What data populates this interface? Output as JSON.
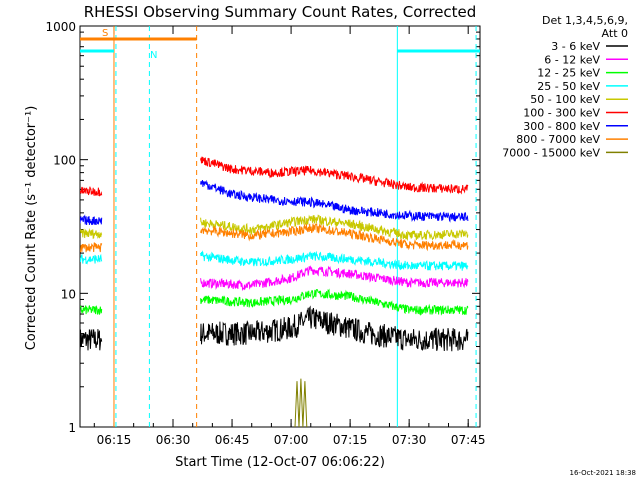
{
  "chart_data": {
    "type": "line",
    "title": "RHESSI Observing Summary Count Rates, Corrected",
    "xlabel": "Start Time (12-Oct-07 06:06:22)",
    "ylabel": "Corrected Count Rate (s⁻¹ detector⁻¹)",
    "y_scale": "log",
    "ylim": [
      1,
      1000
    ],
    "xlim": [
      "06:06:22",
      "07:48:00"
    ],
    "x_ticks": [
      "06:15",
      "06:30",
      "06:45",
      "07:00",
      "07:15",
      "07:30",
      "07:45"
    ],
    "y_ticks": [
      "1",
      "10",
      "100",
      "1000"
    ],
    "grid": false,
    "legend_position": "right",
    "legend_header": [
      "Det 1,3,4,5,6,9,",
      "Att 0"
    ],
    "footer": "16-Oct-2021 18:38",
    "series": [
      {
        "name": "3 - 6 keV",
        "color": "#000000",
        "segments": [
          {
            "x": [
              "06:06:22",
              "06:12:00"
            ],
            "y": [
              4.5,
              4.5
            ]
          },
          {
            "x": [
              "06:37:00",
              "06:50:00",
              "07:00:00",
              "07:05:00",
              "07:10:00",
              "07:20:00",
              "07:30:00",
              "07:45:00"
            ],
            "y": [
              5,
              5,
              5.5,
              6.5,
              6,
              5,
              4.5,
              4.5
            ]
          }
        ]
      },
      {
        "name": "6 - 12 keV",
        "color": "#ff00ff",
        "segments": [
          {
            "x": [
              "06:37:00",
              "06:50:00",
              "07:00:00",
              "07:05:00",
              "07:15:00",
              "07:30:00",
              "07:45:00"
            ],
            "y": [
              12,
              11.5,
              13,
              15,
              14,
              12,
              12
            ]
          }
        ]
      },
      {
        "name": "12 - 25 keV",
        "color": "#00ff00",
        "segments": [
          {
            "x": [
              "06:06:22",
              "06:12:00"
            ],
            "y": [
              7.5,
              7.5
            ]
          },
          {
            "x": [
              "06:37:00",
              "06:50:00",
              "07:00:00",
              "07:05:00",
              "07:15:00",
              "07:30:00",
              "07:45:00"
            ],
            "y": [
              9,
              8.5,
              9,
              10,
              9.5,
              7.5,
              7.5
            ]
          }
        ]
      },
      {
        "name": "25 - 50 keV",
        "color": "#00ffff",
        "segments": [
          {
            "x": [
              "06:06:22",
              "06:12:00"
            ],
            "y": [
              18,
              18
            ]
          },
          {
            "x": [
              "06:37:00",
              "06:50:00",
              "07:00:00",
              "07:05:00",
              "07:15:00",
              "07:30:00",
              "07:45:00"
            ],
            "y": [
              19,
              17,
              18,
              19,
              18,
              16,
              16
            ]
          }
        ]
      },
      {
        "name": "50 - 100 keV",
        "color": "#c8c800",
        "segments": [
          {
            "x": [
              "06:06:22",
              "06:12:00"
            ],
            "y": [
              28,
              28
            ]
          },
          {
            "x": [
              "06:37:00",
              "06:50:00",
              "07:00:00",
              "07:05:00",
              "07:15:00",
              "07:30:00",
              "07:45:00"
            ],
            "y": [
              34,
              30,
              34,
              36,
              33,
              27,
              28
            ]
          }
        ]
      },
      {
        "name": "100 - 300 keV",
        "color": "#ff0000",
        "segments": [
          {
            "x": [
              "06:06:22",
              "06:12:00"
            ],
            "y": [
              58,
              58
            ]
          },
          {
            "x": [
              "06:37:00",
              "06:45:00",
              "06:55:00",
              "07:05:00",
              "07:15:00",
              "07:30:00",
              "07:45:00"
            ],
            "y": [
              100,
              85,
              80,
              83,
              75,
              62,
              60
            ]
          }
        ]
      },
      {
        "name": "300 - 800 keV",
        "color": "#0000ff",
        "segments": [
          {
            "x": [
              "06:06:22",
              "06:12:00"
            ],
            "y": [
              35,
              35
            ]
          },
          {
            "x": [
              "06:37:00",
              "06:45:00",
              "06:55:00",
              "07:05:00",
              "07:15:00",
              "07:30:00",
              "07:45:00"
            ],
            "y": [
              68,
              55,
              50,
              48,
              42,
              38,
              37
            ]
          }
        ]
      },
      {
        "name": "800 - 7000 keV",
        "color": "#ff8000",
        "segments": [
          {
            "x": [
              "06:06:22",
              "06:12:00"
            ],
            "y": [
              22,
              22
            ]
          },
          {
            "x": [
              "06:37:00",
              "06:50:00",
              "07:00:00",
              "07:05:00",
              "07:15:00",
              "07:30:00",
              "07:45:00"
            ],
            "y": [
              30,
              27,
              29,
              31,
              28,
              23,
              23
            ]
          }
        ]
      },
      {
        "name": "7000 - 15000 keV",
        "color": "#808000",
        "segments": [
          {
            "x": [
              "07:01:00",
              "07:01:30",
              "07:02:00",
              "07:02:30",
              "07:03:00",
              "07:03:30",
              "07:04:00"
            ],
            "y": [
              1,
              2.2,
              1,
              2.3,
              1,
              2.2,
              1
            ]
          }
        ]
      }
    ],
    "annotations": [
      {
        "label": "S",
        "color": "#ff8000",
        "x_start": "06:06:22",
        "x_end": "06:36:00",
        "bar_y": 800
      },
      {
        "label": "N",
        "color": "#00ffff",
        "x_start": "06:06:22",
        "x_end": "06:15:00",
        "bar_y": 650
      },
      {
        "label": "",
        "color": "#00ffff",
        "x_start": "07:27:00",
        "x_end": "07:48:00",
        "bar_y": 650
      }
    ],
    "vertical_markers": [
      {
        "x": "06:15:00",
        "color": "#ff8000",
        "style": "solid"
      },
      {
        "x": "06:15:30",
        "color": "#00ffff",
        "style": "dashed"
      },
      {
        "x": "06:36:00",
        "color": "#ff8000",
        "style": "dashed"
      },
      {
        "x": "06:24:00",
        "color": "#00ffff",
        "style": "dashed"
      },
      {
        "x": "07:27:00",
        "color": "#00ffff",
        "style": "solid"
      },
      {
        "x": "07:47:00",
        "color": "#00ffff",
        "style": "dashed"
      }
    ]
  }
}
